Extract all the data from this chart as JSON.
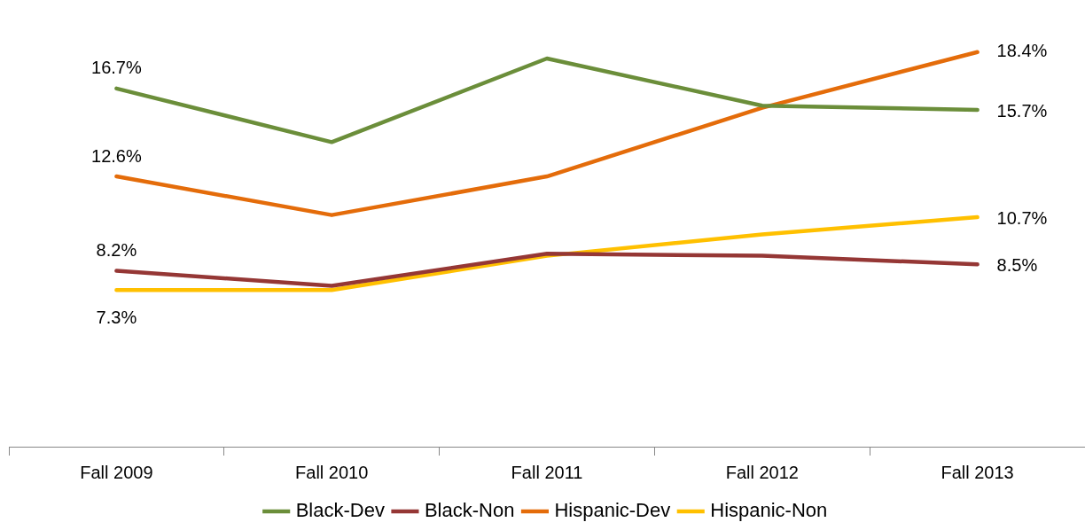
{
  "chart_data": {
    "type": "line",
    "categories": [
      "Fall 2009",
      "Fall 2010",
      "Fall 2011",
      "Fall 2012",
      "Fall 2013"
    ],
    "tick_labels": "x",
    "grid": false,
    "legend": "bottom",
    "marker": "none",
    "line_style": "solid",
    "series": [
      {
        "name": "Black-Dev",
        "color": "#6b8e3a",
        "values": [
          16.7,
          14.2,
          18.1,
          15.9,
          15.7
        ],
        "value_labels": [
          "16.7%",
          null,
          null,
          null,
          "15.7%"
        ]
      },
      {
        "name": "Black-Non",
        "color": "#953735",
        "values": [
          8.2,
          7.5,
          9.0,
          8.9,
          8.5
        ],
        "value_labels": [
          "8.2%",
          null,
          null,
          null,
          "8.5%"
        ]
      },
      {
        "name": "Hispanic-Dev",
        "color": "#e46c0a",
        "values": [
          12.6,
          10.8,
          12.6,
          15.8,
          18.4
        ],
        "value_labels": [
          "12.6%",
          null,
          null,
          null,
          "18.4%"
        ]
      },
      {
        "name": "Hispanic-Non",
        "color": "#ffc000",
        "values": [
          7.3,
          7.3,
          8.9,
          9.9,
          10.7
        ],
        "value_labels": [
          "7.3%",
          null,
          null,
          null,
          "10.7%"
        ]
      }
    ]
  }
}
